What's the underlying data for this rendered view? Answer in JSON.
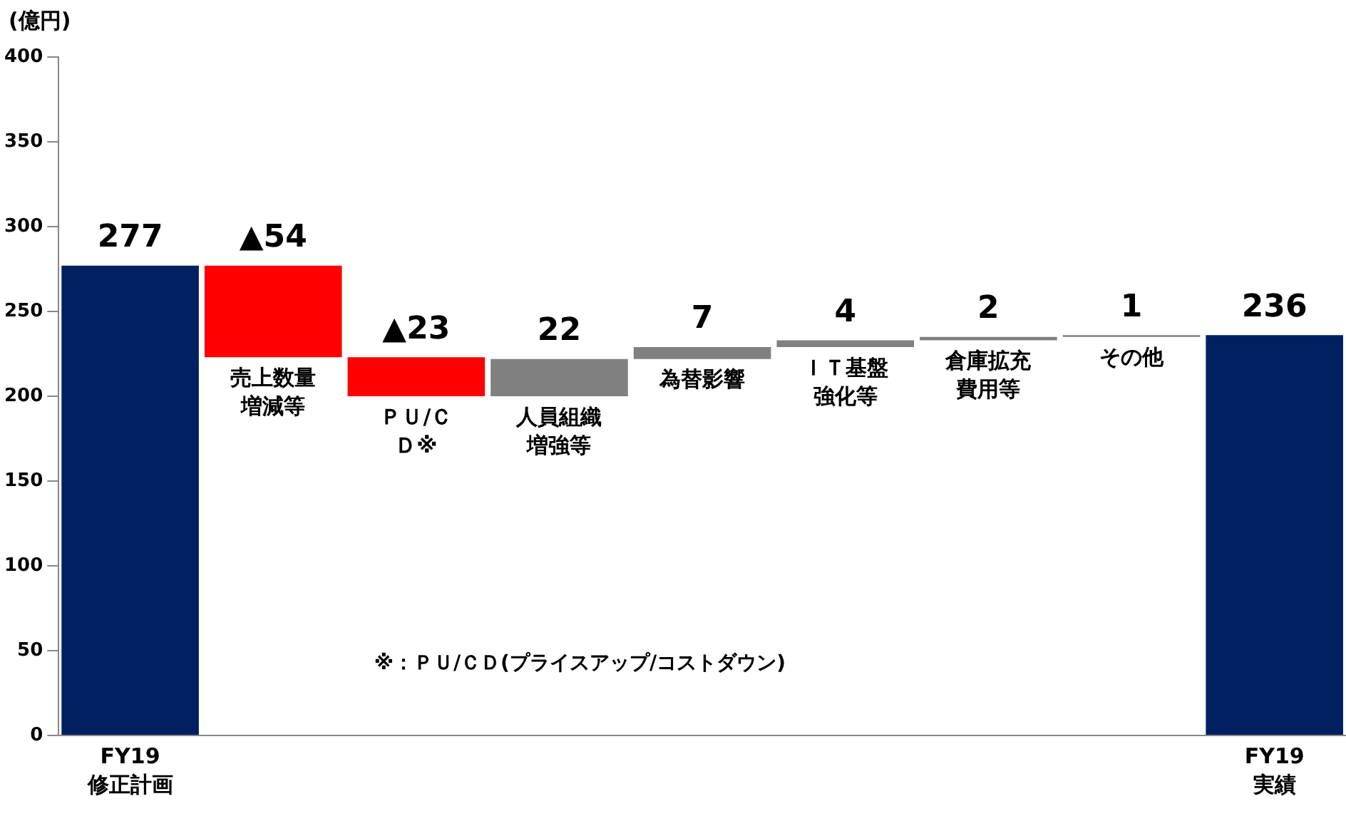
{
  "chart_data": {
    "type": "bar",
    "ylabel": "(億円)",
    "categories": [
      "FY19\n修正計画",
      "売上数量増減等",
      "ＰＵ/ＣＤ※",
      "人員組織増強等",
      "為替影響",
      "ＩＴ基盤強化等",
      "倉庫拡充費用等",
      "その他",
      "FY19\n実績"
    ],
    "values": [
      277,
      -54,
      -23,
      22,
      7,
      4,
      2,
      1,
      236
    ],
    "base": [
      0,
      277,
      223,
      200,
      222,
      229,
      233,
      235,
      0
    ],
    "colors": [
      "#002060",
      "#ff0000",
      "#ff0000",
      "#808080",
      "#808080",
      "#808080",
      "#808080",
      "#808080",
      "#002060"
    ],
    "value_labels": [
      "277",
      "▲54",
      "▲23",
      "22",
      "7",
      "4",
      "2",
      "1",
      "236"
    ],
    "ylim": [
      0,
      400
    ],
    "yticks": [
      0,
      50,
      100,
      150,
      200,
      250,
      300,
      350,
      400
    ],
    "grid": false,
    "legend": false,
    "annotations": [
      "※：ＰＵ/ＣＤ(プライスアップ/コストダウン)"
    ]
  }
}
